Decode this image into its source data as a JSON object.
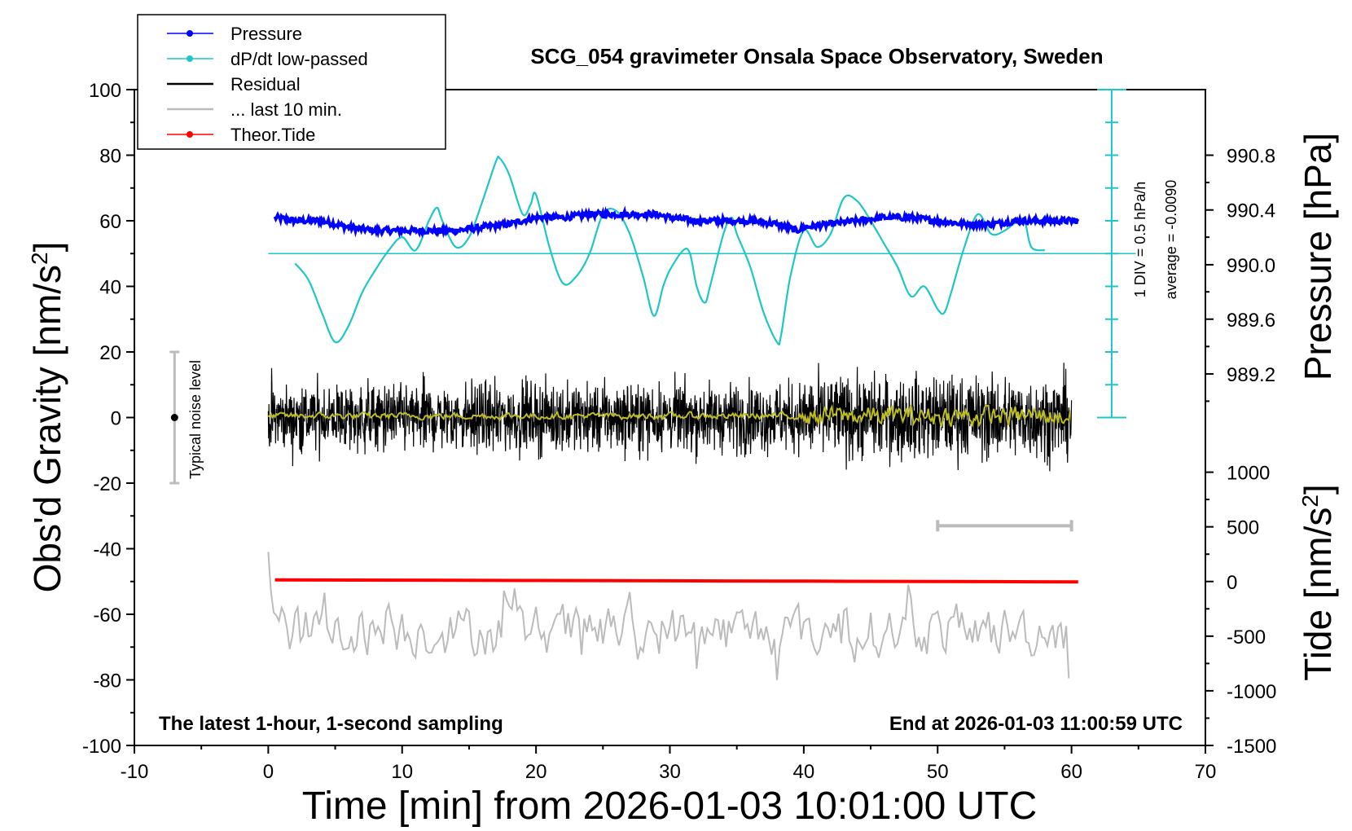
{
  "chart_data": {
    "type": "line",
    "title": "SCG_054 gravimeter Onsala Space Observatory, Sweden",
    "xlabel": "Time [min] from 2026-01-03 10:01:00 UTC",
    "xlim": [
      -10,
      70
    ],
    "x_ticks": [
      -10,
      0,
      10,
      20,
      30,
      40,
      50,
      60,
      70
    ],
    "left_axis": {
      "label": "Obs'd Gravity [nm/s",
      "label_sup": "2",
      "label_end": "]",
      "ylim": [
        -100,
        100
      ],
      "ticks": [
        -100,
        -80,
        -60,
        -40,
        -20,
        0,
        20,
        40,
        60,
        80,
        100
      ]
    },
    "pressure_axis": {
      "label": "Pressure [hPa]",
      "ticks": [
        990.8,
        990.4,
        990.0,
        989.6,
        989.2
      ],
      "gravity_equivalent": [
        80,
        63.3,
        46.6,
        30,
        13.3
      ]
    },
    "tide_axis": {
      "label": "Tide [nm/s",
      "label_sup": "2",
      "label_end": "]",
      "ticks": [
        1000,
        500,
        0,
        -500,
        -1000,
        -1500
      ]
    },
    "scale_bar": {
      "label_1": "1 DIV = 0.5 hPa/h",
      "label_2": "average = -0.0090",
      "x": 63,
      "y_range": [
        0,
        100
      ],
      "zero_line_y": 50
    },
    "noise_bar": {
      "label": "Typical noise level",
      "x": -7,
      "y_range": [
        -20,
        20
      ],
      "center": 0
    },
    "last10_bar": {
      "x_range": [
        50,
        60
      ],
      "y": -33
    },
    "bottom_left_note": "The latest 1-hour, 1-second sampling",
    "bottom_right_note": "End at 2026-01-03 11:00:59 UTC",
    "legend": [
      {
        "label": "Pressure",
        "color": "#0000ff",
        "marker": true
      },
      {
        "label": "dP/dt low-passed",
        "color": "#1ec6c6",
        "marker": true
      },
      {
        "label": "Residual",
        "color": "#000000",
        "marker": false
      },
      {
        "label": "... last 10 min.",
        "color": "#bbbbbb",
        "marker": false
      },
      {
        "label": "Theor.Tide",
        "color": "#ff0000",
        "marker": true
      }
    ],
    "series": [
      {
        "name": "Pressure",
        "color": "#0000ff",
        "x": [
          0.5,
          2,
          4,
          6,
          8,
          10,
          12,
          14,
          16,
          18,
          20,
          22,
          24,
          26,
          28,
          29,
          30,
          32,
          34,
          36,
          38,
          39.5,
          40,
          42,
          44,
          46,
          48,
          50,
          52,
          54,
          56,
          58,
          60.5
        ],
        "y": [
          61,
          60,
          60,
          58,
          57,
          57,
          57,
          57,
          58,
          59,
          61,
          61,
          62,
          62,
          62,
          62,
          61,
          60,
          60,
          60,
          59,
          57,
          58,
          59,
          60,
          61,
          61,
          60,
          59,
          59,
          60,
          60,
          60
        ]
      },
      {
        "name": "dP/dt low-passed",
        "color": "#1ec6c6",
        "x": [
          2,
          3,
          4,
          5,
          6,
          7,
          8,
          9,
          10,
          11,
          12,
          12.6,
          13,
          14,
          15,
          16,
          17,
          17.3,
          18,
          19,
          19.6,
          20,
          21,
          22,
          23,
          24,
          25,
          26,
          27,
          28,
          28.8,
          29.5,
          30,
          31,
          31.5,
          32,
          32.6,
          33,
          34,
          34.6,
          35,
          36,
          37,
          38,
          38.3,
          39,
          40,
          41,
          42,
          43,
          44,
          45,
          46,
          47,
          48,
          49,
          50,
          50.5,
          51,
          52,
          53,
          54,
          55,
          56,
          56.5,
          57,
          58
        ],
        "y": [
          47,
          42,
          32,
          23,
          28,
          38,
          45,
          51,
          55,
          51,
          60,
          64,
          60,
          52,
          55,
          66,
          78,
          79,
          74,
          62,
          65,
          68,
          52,
          41,
          43,
          50,
          62,
          63,
          56,
          43,
          31,
          40,
          45,
          51,
          50,
          40,
          35,
          40,
          56,
          61,
          56,
          46,
          32,
          23,
          25,
          43,
          57,
          52,
          56,
          67,
          66,
          60,
          53,
          46,
          37,
          40,
          33,
          32,
          38,
          52,
          62,
          56,
          57,
          60,
          60,
          52,
          51
        ]
      },
      {
        "name": "Theor.Tide",
        "color": "#ff0000",
        "x": [
          0.5,
          10,
          20,
          30,
          40,
          50,
          60.5
        ],
        "y": [
          -49.5,
          -49.6,
          -49.7,
          -49.8,
          -49.9,
          -50.0,
          -50.1
        ]
      }
    ]
  }
}
